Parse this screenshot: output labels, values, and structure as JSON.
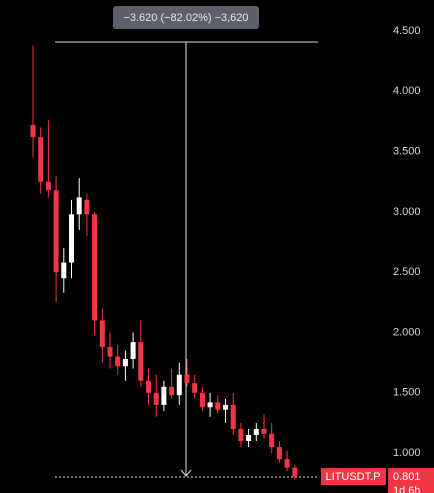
{
  "chart_data": {
    "type": "candlestick",
    "symbol": "LITUSDT.P",
    "last_price": 0.801,
    "countdown": "1d 6h",
    "measure_label": "−3.620 (−82.02%) −3,620",
    "open": [
      3.72,
      3.62,
      3.25,
      3.18,
      2.45,
      2.58,
      2.98,
      3.1,
      2.98,
      2.1,
      1.88,
      1.8,
      1.72,
      1.78,
      1.92,
      1.6,
      1.5,
      1.4,
      1.55,
      1.48,
      1.65,
      1.58,
      1.5,
      1.38,
      1.42,
      1.36,
      1.4,
      1.2,
      1.1,
      1.15,
      1.2,
      1.16,
      1.05,
      0.95,
      0.88
    ],
    "high": [
      4.38,
      3.7,
      3.76,
      3.3,
      2.7,
      3.1,
      3.28,
      3.15,
      3.0,
      2.2,
      2.0,
      1.9,
      1.85,
      2.0,
      2.1,
      1.7,
      1.65,
      1.6,
      1.7,
      1.75,
      1.78,
      1.65,
      1.55,
      1.5,
      1.48,
      1.45,
      1.5,
      1.25,
      1.2,
      1.25,
      1.32,
      1.25,
      1.1,
      1.02,
      0.9
    ],
    "low": [
      3.45,
      3.15,
      3.12,
      2.25,
      2.33,
      2.45,
      2.85,
      2.8,
      1.98,
      1.75,
      1.7,
      1.65,
      1.6,
      1.7,
      1.55,
      1.4,
      1.3,
      1.35,
      1.45,
      1.4,
      1.55,
      1.45,
      1.35,
      1.3,
      1.33,
      1.25,
      1.15,
      1.05,
      1.05,
      1.1,
      1.12,
      1.0,
      0.92,
      0.85,
      0.78
    ],
    "close": [
      3.62,
      3.25,
      3.18,
      2.5,
      2.58,
      2.98,
      3.12,
      2.98,
      2.1,
      1.88,
      1.8,
      1.72,
      1.78,
      1.92,
      1.6,
      1.5,
      1.4,
      1.55,
      1.48,
      1.65,
      1.58,
      1.5,
      1.38,
      1.42,
      1.36,
      1.4,
      1.2,
      1.1,
      1.15,
      1.2,
      1.16,
      1.05,
      0.95,
      0.88,
      0.8
    ],
    "up_color": "#ffffff",
    "down_color": "#f23645",
    "ylim": [
      0.669,
      4.757
    ],
    "yticks": [
      {
        "value": 1,
        "label": "1.000"
      },
      {
        "value": 1.5,
        "label": "1.500"
      },
      {
        "value": 2,
        "label": "2.000"
      },
      {
        "value": 2.5,
        "label": "2.500"
      },
      {
        "value": 3,
        "label": "3.000"
      },
      {
        "value": 3.5,
        "label": "3.500"
      },
      {
        "value": 4,
        "label": "4.000"
      },
      {
        "value": 4.5,
        "label": "4.500"
      }
    ]
  }
}
